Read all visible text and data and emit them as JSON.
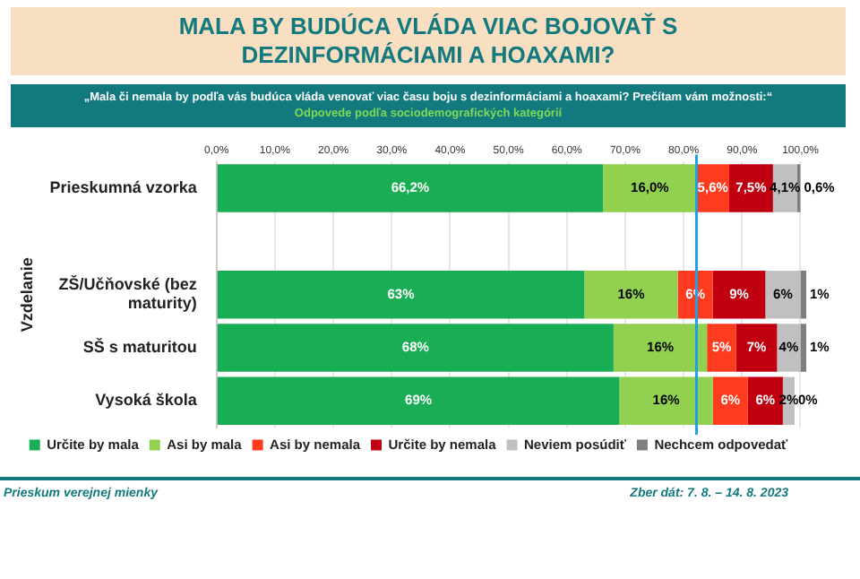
{
  "chart_data": {
    "type": "bar",
    "orientation": "horizontal",
    "stacked": true,
    "title": "MALA BY BUDÚCA VLÁDA VIAC BOJOVAŤ S DEZINFORMÁCIAMI A HOAXAMI?",
    "subtitle": "„Mala či nemala by podľa vás budúca vláda venovať viac času boju s dezinformáciami a hoaxami? Prečítam vám možnosti:“",
    "ylabel": "Vzdelanie",
    "annotations": [
      "Odpovede podľa sociodemografických kategórií",
      "Prieskum verejnej mienky",
      "Zber dát: 7. 8. – 14. 8. 2023"
    ],
    "categories": [
      "Prieskumná vzorka",
      null,
      "ZŠ/Učňovské (bez maturity)",
      "SŠ s maturitou",
      "Vysoká škola"
    ],
    "series": [
      {
        "name": "Určite by mala",
        "color": "#1aae54",
        "values": [
          66.2,
          null,
          63,
          68,
          69
        ],
        "value_labels": [
          "66,2%",
          null,
          "63%",
          "68%",
          "69%"
        ]
      },
      {
        "name": "Asi by mala",
        "color": "#92d050",
        "values": [
          16.0,
          null,
          16,
          16,
          16
        ],
        "value_labels": [
          "16,0%",
          null,
          "16%",
          "16%",
          "16%"
        ]
      },
      {
        "name": "Asi by nemala",
        "color": "#ff3b1f",
        "values": [
          5.6,
          null,
          6,
          5,
          6
        ],
        "value_labels": [
          "5,6%",
          null,
          "6%",
          "5%",
          "6%"
        ]
      },
      {
        "name": "Určite by nemala",
        "color": "#c00010",
        "values": [
          7.5,
          null,
          9,
          7,
          6
        ],
        "value_labels": [
          "7,5%",
          null,
          "9%",
          "7%",
          "6%"
        ]
      },
      {
        "name": "Neviem posúdiť",
        "color": "#c0c0c0",
        "values": [
          4.1,
          null,
          6,
          4,
          2
        ],
        "value_labels": [
          "4,1%",
          null,
          "6%",
          "4%",
          "2%"
        ]
      },
      {
        "name": "Nechcem odpovedať",
        "color": "#7f7f7f",
        "values": [
          0.6,
          null,
          1,
          1,
          0
        ],
        "value_labels": [
          "0,6%",
          null,
          "1%",
          "1%",
          "0%"
        ]
      }
    ],
    "xlim": [
      0,
      101
    ],
    "xticks": [
      {
        "value": 0,
        "label": "0,0%"
      },
      {
        "value": 10,
        "label": "10,0%"
      },
      {
        "value": 20,
        "label": "20,0%"
      },
      {
        "value": 30,
        "label": "30,0%"
      },
      {
        "value": 40,
        "label": "40,0%"
      },
      {
        "value": 50,
        "label": "50,0%"
      },
      {
        "value": 60,
        "label": "60,0%"
      },
      {
        "value": 70,
        "label": "70,0%"
      },
      {
        "value": 80,
        "label": "80,0%"
      },
      {
        "value": 90,
        "label": "90,0%"
      },
      {
        "value": 100,
        "label": "100,0%"
      }
    ],
    "ref_lines": [
      {
        "axis": "x",
        "value": 82.2,
        "color": "#1ea0e6"
      }
    ],
    "grid": "x",
    "legend": "bottom"
  }
}
